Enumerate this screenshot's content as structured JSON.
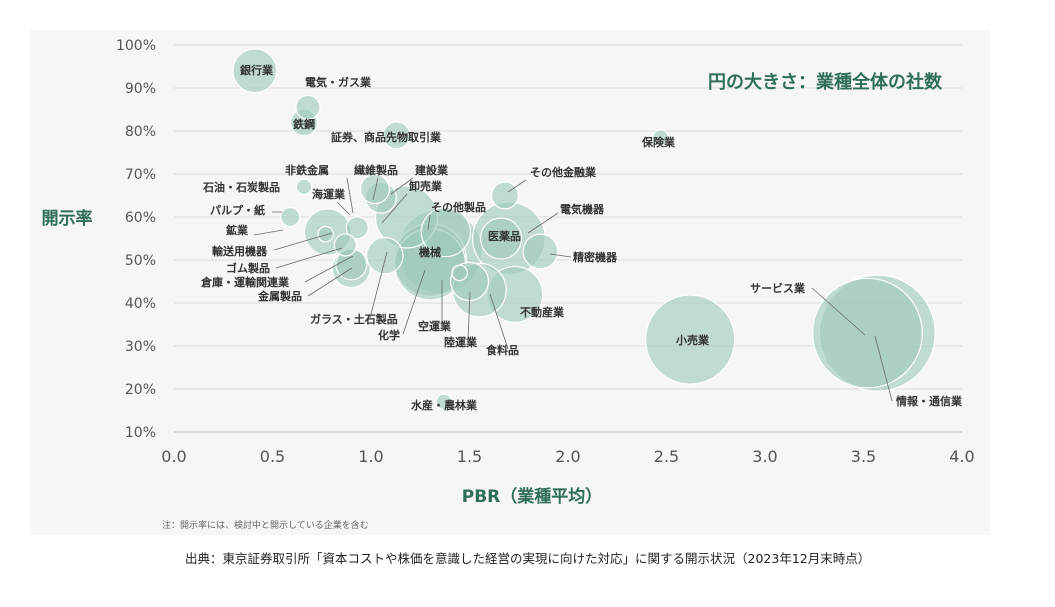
{
  "chart_data": {
    "type": "scatter",
    "subtype": "bubble",
    "title": "円の大きさ：業種全体の社数",
    "xlabel": "PBR（業種平均）",
    "ylabel": "開示率",
    "xlim": [
      0.0,
      4.0
    ],
    "ylim": [
      0.1,
      1.0
    ],
    "x_ticks": [
      "0.0",
      "0.5",
      "1.0",
      "1.5",
      "2.0",
      "2.5",
      "3.0",
      "3.5",
      "4.0"
    ],
    "y_ticks": [
      "10%",
      "20%",
      "30%",
      "40%",
      "50%",
      "60%",
      "70%",
      "80%",
      "90%",
      "100%"
    ],
    "grid": "horizontal",
    "colors": {
      "bubble_fill": "#9fc9b8",
      "bubble_stroke": "#ffffff",
      "title_color": "#2f6e57",
      "axis_label_color": "#2f6e57"
    },
    "note": "注：開示率には、検討中と開示している企業を含む",
    "points": [
      {
        "label": "銀行業",
        "x": 0.41,
        "y": 0.94,
        "size": 80
      },
      {
        "label": "電気・ガス業",
        "x": 0.68,
        "y": 0.855,
        "size": 24
      },
      {
        "label": "鉄鋼",
        "x": 0.66,
        "y": 0.82,
        "size": 30
      },
      {
        "label": "証券、商品先物取引業",
        "x": 1.13,
        "y": 0.79,
        "size": 30
      },
      {
        "label": "保険業",
        "x": 2.47,
        "y": 0.785,
        "size": 10
      },
      {
        "label": "その他金融業",
        "x": 1.68,
        "y": 0.65,
        "size": 30
      },
      {
        "label": "非鉄金属",
        "x": 1.02,
        "y": 0.665,
        "size": 35
      },
      {
        "label": "繊維製品",
        "x": 1.05,
        "y": 0.645,
        "size": 40
      },
      {
        "label": "石油・石炭製品",
        "x": 0.66,
        "y": 0.67,
        "size": 10
      },
      {
        "label": "建設業",
        "x": 1.18,
        "y": 0.6,
        "size": 160
      },
      {
        "label": "海運業",
        "x": 0.93,
        "y": 0.575,
        "size": 20
      },
      {
        "label": "卸売業",
        "x": 1.35,
        "y": 0.52,
        "size": 300
      },
      {
        "label": "パルプ・紙",
        "x": 0.59,
        "y": 0.6,
        "size": 15
      },
      {
        "label": "その他製品",
        "x": 1.38,
        "y": 0.565,
        "size": 100
      },
      {
        "label": "電気機器",
        "x": 1.7,
        "y": 0.55,
        "size": 220
      },
      {
        "label": "鉱業",
        "x": 0.77,
        "y": 0.56,
        "size": 10
      },
      {
        "label": "医薬品",
        "x": 1.66,
        "y": 0.55,
        "size": 70
      },
      {
        "label": "機械",
        "x": 1.3,
        "y": 0.5,
        "size": 220
      },
      {
        "label": "輸送用機器",
        "x": 0.78,
        "y": 0.565,
        "size": 90
      },
      {
        "label": "精密機器",
        "x": 1.86,
        "y": 0.52,
        "size": 50
      },
      {
        "label": "ゴム製品",
        "x": 0.87,
        "y": 0.535,
        "size": 20
      },
      {
        "label": "倉庫・運輸関連業",
        "x": 0.9,
        "y": 0.49,
        "size": 40
      },
      {
        "label": "金属製品",
        "x": 0.9,
        "y": 0.48,
        "size": 60
      },
      {
        "label": "ガラス・土石製品",
        "x": 1.07,
        "y": 0.51,
        "size": 55
      },
      {
        "label": "化学",
        "x": 1.3,
        "y": 0.49,
        "size": 210
      },
      {
        "label": "空運業",
        "x": 1.45,
        "y": 0.47,
        "size": 10
      },
      {
        "label": "陸運業",
        "x": 1.5,
        "y": 0.45,
        "size": 60
      },
      {
        "label": "食料品",
        "x": 1.55,
        "y": 0.43,
        "size": 120
      },
      {
        "label": "不動産業",
        "x": 1.73,
        "y": 0.42,
        "size": 130
      },
      {
        "label": "小売業",
        "x": 2.62,
        "y": 0.315,
        "size": 330
      },
      {
        "label": "サービス業",
        "x": 3.52,
        "y": 0.33,
        "size": 500
      },
      {
        "label": "情報・通信業",
        "x": 3.57,
        "y": 0.33,
        "size": 560
      },
      {
        "label": "水産・農林業",
        "x": 1.37,
        "y": 0.17,
        "size": 10
      }
    ]
  },
  "source_text": "出典：東京証券取引所「資本コストや株価を意識した経営の実現に向けた対応」に関する開示状況（2023年12月末時点）"
}
